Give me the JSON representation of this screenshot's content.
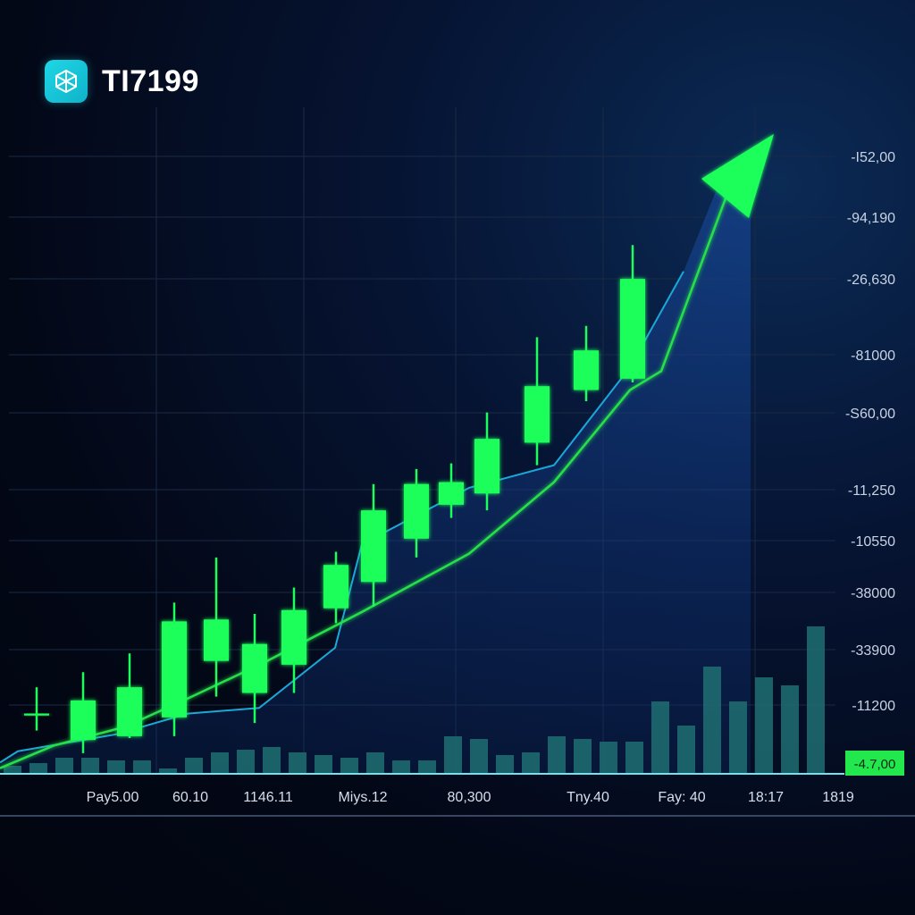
{
  "header": {
    "title": "TI7199",
    "logo_icon": "cube-logo-icon"
  },
  "colors": {
    "candle": "#1bff5a",
    "trend_line": "#28e04a",
    "ma_line": "#1aa8d8",
    "area_fill": "#123a80",
    "volume": "#1f6e72",
    "arrow": "#1bff5a",
    "grid": "#1b2a44",
    "axis": "#6fe3ee"
  },
  "chart_data": {
    "type": "candlestick",
    "title": "TI7199",
    "y_ticks": [
      "-I52,00",
      "-94,190",
      "-26,630",
      "-81000",
      "-S60,00",
      "-11,250",
      "-10550",
      "-38000",
      "-33900",
      "-11200"
    ],
    "x_ticks": [
      "Pay5.00",
      "60.10",
      "1146.11",
      "Miys.12",
      "80,300",
      "Tny.40",
      "Fay: 40",
      "18:17",
      "1819"
    ],
    "current_price": "-4.7,00",
    "candles": [
      {
        "open": 3.2,
        "close": 3.1,
        "high": 4.6,
        "low": 2.3,
        "bull": true
      },
      {
        "open": 1.8,
        "close": 3.9,
        "high": 5.4,
        "low": 1.1,
        "bull": true
      },
      {
        "open": 2.0,
        "close": 4.6,
        "high": 6.4,
        "low": 1.9,
        "bull": true
      },
      {
        "open": 3.0,
        "close": 8.1,
        "high": 9.1,
        "low": 2.0,
        "bull": true
      },
      {
        "open": 6.0,
        "close": 8.2,
        "high": 11.5,
        "low": 4.1,
        "bull": true
      },
      {
        "open": 4.3,
        "close": 6.9,
        "high": 8.5,
        "low": 2.7,
        "bull": true
      },
      {
        "open": 5.8,
        "close": 8.7,
        "high": 9.9,
        "low": 4.3,
        "bull": true
      },
      {
        "open": 8.8,
        "close": 11.1,
        "high": 11.8,
        "low": 8.0,
        "bull": true
      },
      {
        "open": 10.2,
        "close": 14.0,
        "high": 15.4,
        "low": 8.9,
        "bull": true
      },
      {
        "open": 12.5,
        "close": 15.4,
        "high": 16.2,
        "low": 11.5,
        "bull": true
      },
      {
        "open": 14.3,
        "close": 15.5,
        "high": 16.5,
        "low": 13.6,
        "bull": true
      },
      {
        "open": 14.9,
        "close": 17.8,
        "high": 19.2,
        "low": 14.0,
        "bull": true
      },
      {
        "open": 17.6,
        "close": 20.6,
        "high": 23.2,
        "low": 16.4,
        "bull": true
      },
      {
        "open": 20.4,
        "close": 22.5,
        "high": 23.8,
        "low": 19.8,
        "bull": true
      },
      {
        "open": 21.0,
        "close": 26.3,
        "high": 28.1,
        "low": 20.8,
        "bull": true
      }
    ],
    "trend_line": [
      0.3,
      1.5,
      2.5,
      4.0,
      5.9,
      8.6,
      11.7,
      15.5,
      20.4,
      21.4,
      31.6
    ],
    "ma_line": [
      1.2,
      2.1,
      3.2,
      3.5,
      6.7,
      12.2,
      15.2,
      16.4,
      21.6,
      26.7
    ],
    "volume": [
      3,
      4,
      6,
      6,
      5,
      5,
      2,
      6,
      8,
      9,
      10,
      8,
      7,
      6,
      8,
      5,
      5,
      14,
      13,
      7,
      8,
      14,
      13,
      12,
      12,
      27,
      18,
      40,
      27,
      36,
      33,
      55
    ],
    "ylim": [
      0,
      34
    ],
    "grid": true
  }
}
